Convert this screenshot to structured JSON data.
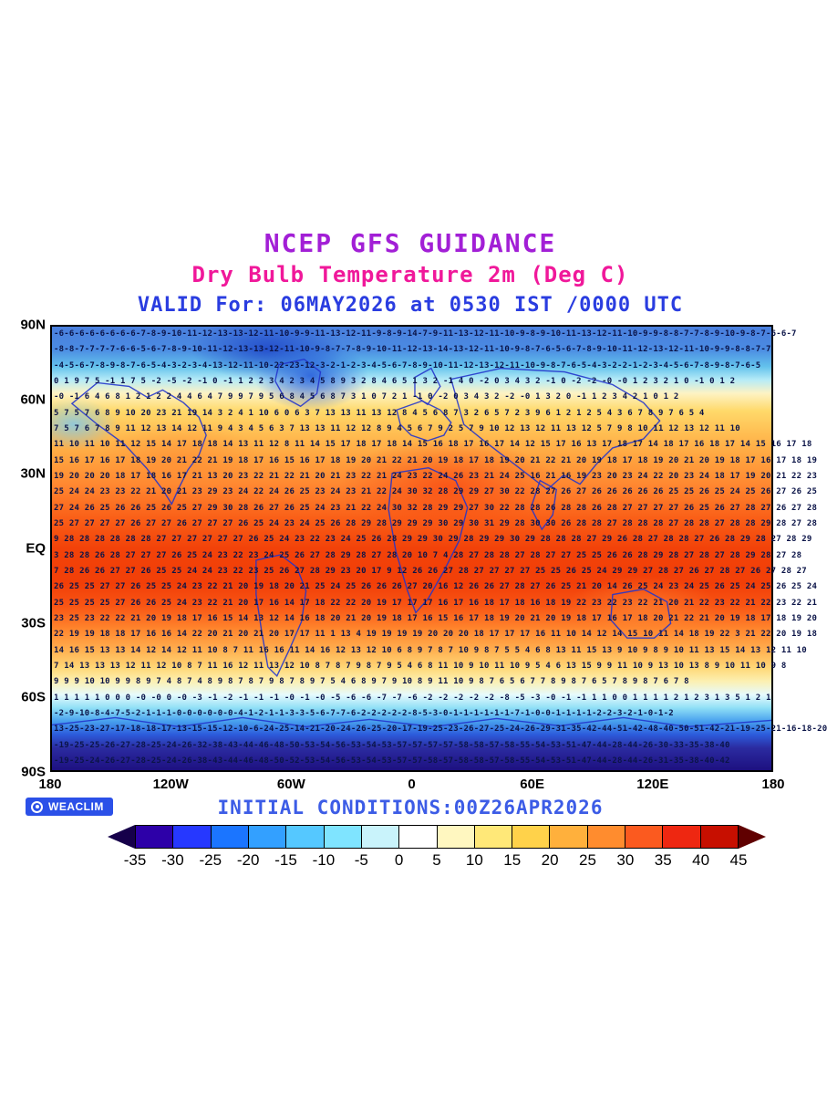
{
  "colors": {
    "title": "#a21fd6",
    "subtitle": "#f0189a",
    "valid": "#2a3de0",
    "initial": "#3c5ce6",
    "numbers": "#0b1448",
    "coastline": "#2335cc",
    "badge_bg": "#2b50e8",
    "cb_left_arrow": "#16004a",
    "cb_right_arrow": "#600000"
  },
  "chart_data": {
    "type": "heatmap",
    "title": "NCEP GFS GUIDANCE",
    "subtitle": "Dry Bulb Temperature 2m (Deg C)",
    "valid_line": "VALID For: 06MAY2026 at 0530 IST /0000 UTC",
    "initial_conditions": "INITIAL CONDITIONS:00Z26APR2026",
    "logo": "WEACLIM",
    "units": "Deg C",
    "projection": "equirectangular world map",
    "x_ticks": [
      "180",
      "120W",
      "60W",
      "0",
      "60E",
      "120E",
      "180"
    ],
    "y_ticks": [
      "90N",
      "60N",
      "30N",
      "EQ",
      "30S",
      "60S",
      "90S"
    ],
    "lon_range": [
      -180,
      180
    ],
    "lat_range": [
      90,
      -90
    ],
    "colorbar": {
      "levels": [
        -35,
        -30,
        -25,
        -20,
        -15,
        -10,
        -5,
        0,
        5,
        10,
        15,
        20,
        25,
        30,
        35,
        40,
        45
      ],
      "colors": [
        "#2d00a8",
        "#2638ff",
        "#1b75ff",
        "#33a0ff",
        "#55c8ff",
        "#7fe4ff",
        "#c9f3fb",
        "#ffffff",
        "#fff7c0",
        "#ffe878",
        "#ffd24a",
        "#ffb03c",
        "#ff8c2e",
        "#fb5a1f",
        "#ee2711",
        "#c70f00"
      ]
    },
    "value_rows": [
      "-6-6-6-6-6-6-6-6-7-8-9-10-11-12-13-13-12-11-10-9-9-11-13-12-11-9-8-9-14-7-9-11-13-12-11-10-9-8-9-10-11-13-12-11-10-9-9-8-8-7-7-8-9-10-9-8-7-6-6-7",
      "-8-8-7-7-7-7-6-6-5-6-7-8-9-10-11-12-13-13-12-11-10-9-8-7-7-8-9-10-11-12-13-14-13-12-11-10-9-8-7-6-5-6-7-8-9-10-11-12-13-12-11-10-9-9-8-8-7-7",
      "-4-5-6-7-8-9-8-7-6-5-4-3-2-3-4-13-12-11-10-22-23-12-3-2-1-2-3-4-5-6-7-8-9-10-11-12-13-12-11-10-9-8-7-6-5-4-3-2-2-1-2-3-4-5-6-7-8-9-8-7-6-5",
      "0 1 9 7 5 -1 1 7 5 -2 -5 -2 -1 0 -1 1 2 2 3 4 2 3 4 5 8 9 3 2 8 4 6 5 1 3 2 -1 4 0 -2 0 3 4 3 2 -1 0 -2 -2 -0 -0 1 2 3 2 1 0 -1 0 1 2",
      "-0 -1 6 4 6 8 1 2 1 2 2 4 4 6 4 7 9 9 7 9 5 6 8 4 5 6 8 7 3 1 0 7 2 1 -1 0 -2 0 3 4 3 2 -2 -0 1 3 2 0 -1 1 2 3 4 2 1 0 1 2",
      "5 7 5 7 6 8 9 10 20 23 21 19 14 3 2 4 1 10 6 0 6 3 7 13 13 11 13 12 8 4 5 6 8 7 3 2 6 5 7 2 3 9 6 1 2 1 2 5 4 3 6 7 8 9 7 6 5 4",
      "7 5 7 6 7 8 9 11 12 13 14 12 11 9 4 3 4 5 6 3 7 13 13 11 12 12 8 9 4 5 6 7 9 2 5 7 9 10 12 13 12 11 13 12 5 7 9 8 10 11 12 13 12 11 10",
      "11 10 11 10 11 12 15 14 17 18 18 14 13 11 12 8 11 14 15 17 18 17 18 14 15 16 18 17 16 17 14 12 15 17 16 13 17 18 17 14 18 17 16 18 17 14 15 16 17 18",
      "15 16 17 16 17 18 19 20 21 22 21 19 18 17 16 15 16 17 18 19 20 21 22 21 20 19 18 17 18 19 20 21 22 21 20 19 18 17 18 19 20 21 20 19 18 17 16 17 18 19",
      "19 20 20 20 18 17 18 16 17 21 13 20 23 22 21 22 21 20 21 23 22 21 24 23 22 24 26 23 21 24 25 16 21 16 19 23 20 23 24 22 20 23 24 18 17 19 20 21 22 23",
      "25 24 24 23 23 22 21 20 21 23 29 23 24 22 24 26 25 23 24 23 21 22 24 30 32 28 29 29 27 30 22 28 27 26 27 26 26 26 26 26 25 25 26 25 24 25 26 27 26 25",
      "27 24 26 25 26 26 25 26 25 27 29 30 28 26 27 26 25 24 23 21 22 24 30 32 28 29 29 27 30 22 28 28 26 28 28 26 28 27 27 27 27 26 25 26 27 28 27 26 27 28",
      "25 27 27 27 27 26 27 27 26 27 27 27 26 25 24 23 24 25 26 28 29 28 29 29 29 30 29 30 31 29 28 30 30 26 28 28 27 28 28 28 27 28 28 27 28 28 29 28 27 28",
      "9 28 28 28 28 28 28 27 27 27 27 27 27 26 25 24 23 22 23 24 25 26 28 29 29 30 29 28 29 29 30 29 28 28 28 27 29 26 28 27 28 28 27 26 28 29 28 27 28 29",
      "3 28 28 26 28 27 27 27 26 25 24 23 22 23 24 25 26 27 28 29 28 27 28 20 10 7 4 28 27 28 28 27 28 27 27 25 25 26 26 28 29 28 27 28 27 28 29 28 27 28",
      "7 28 26 26 27 27 26 25 25 24 24 23 22 23 25 26 27 28 29 23 20 17 9 12 26 26 27 28 27 27 27 27 25 25 26 25 24 29 29 27 28 27 26 27 28 27 26 27 28 27",
      "26 25 25 27 27 26 25 25 24 23 22 21 20 19 18 20 21 25 24 25 26 26 26 27 20 16 12 26 26 27 28 27 26 25 21 20 14 26 25 24 23 24 25 26 25 24 25 26 25 24",
      "25 25 25 25 27 26 26 25 24 23 22 21 20 17 16 14 17 18 22 22 20 19 17 17 17 16 17 16 18 17 18 16 18 19 22 23 22 23 22 21 20 21 22 23 22 21 22 23 22 21",
      "23 25 23 22 22 21 20 19 18 17 16 15 14 13 12 14 16 18 20 21 20 19 18 17 16 15 16 17 18 19 20 21 20 19 18 17 16 17 18 20 21 22 21 20 19 18 17 18 19 20",
      "22 19 19 18 18 17 16 16 14 22 20 21 20 21 20 17 17 11 1 13 4 19 19 19 19 20 20 20 18 17 17 17 16 11 10 14 12 14 15 10 11 14 18 19 22 3 21 22 20 19 18",
      "14 16 15 13 13 14 12 14 12 11 10 8 7 11 16 16 11 14 16 12 13 12 10 6 8 9 7 8 7 10 9 8 7 5 5 4 6 8 13 11 15 13 9 10 9 8 9 10 11 13 15 14 13 12 11 10",
      "7 14 13 13 13 12 11 12 10 8 7 11 16 12 11 13 12 10 8 7 8 7 9 8 7 9 5 4 6 8 11 10 9 10 11 10 9 5 4 6 13 15 9 9 11 10 9 13 10 13 8 9 10 11 10 9 8",
      "9 9 9 10 10 9 9 8 9 7 4 8 7 4 8 9 8 7 8 7 9 8 7 8 9 7 5 4 6 8 9 7 9 10 8 9 11 10 9 8 7 6 5 6 7 7 8 9 8 7 6 5 7 8 9 8 7 6 7 8",
      "1 1 1 1 1 0 0 0 -0 -0 0 -0 -3 -1 -2 -1 -1 -1 -0 -1 -0 -5 -6 -6 -7 -7 -6 -2 -2 -2 -2 -2 -8 -5 -3 -0 -1 -1 1 1 0 0 1 1 1 1 2 1 2 3 1 3 5 1 2 1",
      "-2-9-10-8-4-7-5-2-1-1-1-0-0-0-0-0-0-4-1-2-1-1-3-3-5-6-7-7-6-2-2-2-2-2-8-5-3-0-1-1-1-1-1-1-7-1-0-0-1-1-1-1-2-2-3-2-1-0-1-2",
      "13-25-23-27-17-18-18-17-13-15-15-12-10-6-24-25-14-21-20-24-26-25-20-17-19-25-23-26-27-25-24-26-29-31-35-42-44-51-42-48-40-50-51-42-21-19-25-21-16-18-20",
      "-19-25-25-26-27-28-25-24-26-32-38-43-44-46-48-50-53-54-56-53-54-53-57-57-57-57-58-58-57-58-55-54-53-51-47-44-28-44-26-30-33-35-38-40",
      "-19-25-24-26-27-28-25-24-26-38-43-44-46-48-50-52-53-54-56-53-54-53-57-57-58-57-58-58-57-58-55-54-53-51-47-44-28-44-26-31-35-38-40-42"
    ]
  }
}
